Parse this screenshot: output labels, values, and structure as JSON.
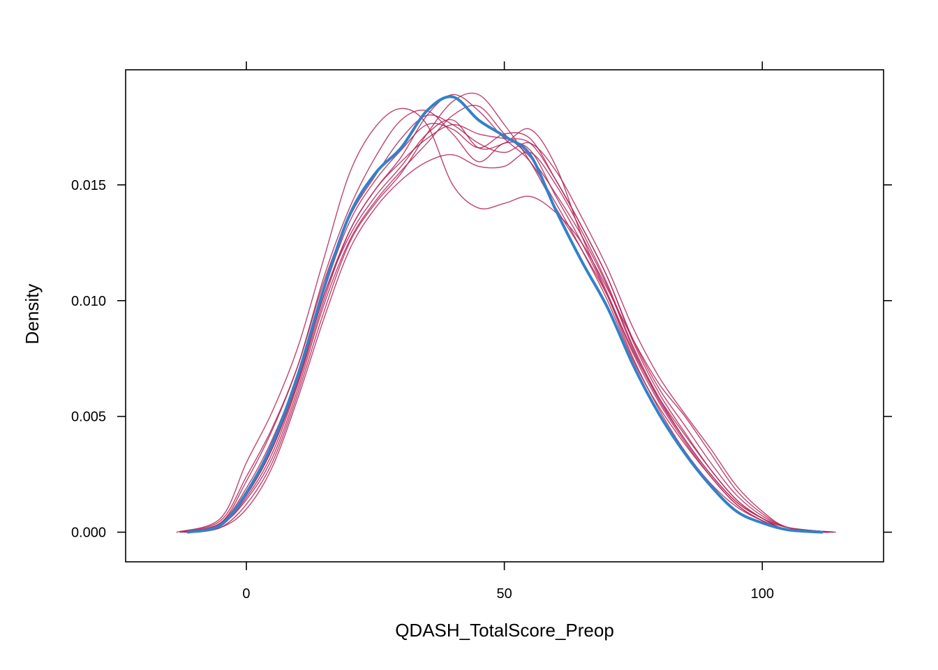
{
  "chart_data": {
    "type": "line",
    "title": "",
    "xlabel": "QDASH_TotalScore_Preop",
    "ylabel": "Density",
    "xlim": [
      -23.4,
      123.5
    ],
    "ylim": [
      -0.00128,
      0.01997
    ],
    "x_ticks": [
      0,
      50,
      100
    ],
    "x_tick_labels": [
      "0",
      "50",
      "100"
    ],
    "y_ticks": [
      0.0,
      0.005,
      0.01,
      0.015
    ],
    "y_tick_labels": [
      "0.000",
      "0.005",
      "0.010",
      "0.015"
    ],
    "grid": false,
    "legend": "none",
    "colors": {
      "observed": "#3182c8",
      "imputed": "#b22255"
    },
    "series": [
      {
        "role": "observed",
        "x": [
          -11.3,
          -5,
          0,
          5,
          10,
          15,
          20,
          25,
          30,
          35,
          40,
          45,
          50,
          55,
          60,
          65,
          70,
          75,
          80,
          85,
          90,
          95,
          100,
          105,
          111.6
        ],
        "y": [
          0,
          0.0003,
          0.0017,
          0.0038,
          0.0068,
          0.0105,
          0.0137,
          0.0155,
          0.0166,
          0.0182,
          0.0188,
          0.0178,
          0.0171,
          0.0163,
          0.0139,
          0.0117,
          0.0097,
          0.0072,
          0.0051,
          0.0034,
          0.002,
          0.0009,
          0.0004,
          0.0001,
          0
        ]
      },
      {
        "role": "imputed",
        "x": [
          -12.7,
          -5,
          0,
          5,
          10,
          15,
          20,
          25,
          30,
          35,
          40,
          45,
          50,
          55,
          60,
          65,
          70,
          75,
          80,
          85,
          90,
          95,
          100,
          105,
          112.6
        ],
        "y": [
          0,
          0.0004,
          0.0022,
          0.0044,
          0.0072,
          0.011,
          0.014,
          0.0162,
          0.0178,
          0.0182,
          0.0172,
          0.016,
          0.0168,
          0.0165,
          0.0145,
          0.0125,
          0.0102,
          0.0075,
          0.0053,
          0.0035,
          0.0021,
          0.0011,
          0.0005,
          0.0001,
          0
        ]
      },
      {
        "role": "imputed",
        "x": [
          -11.9,
          -5,
          0,
          5,
          10,
          15,
          20,
          25,
          30,
          35,
          40,
          45,
          50,
          55,
          60,
          65,
          70,
          75,
          80,
          85,
          90,
          95,
          100,
          105,
          113.5
        ],
        "y": [
          0,
          0.0002,
          0.001,
          0.0028,
          0.0058,
          0.0092,
          0.0122,
          0.014,
          0.0152,
          0.016,
          0.0163,
          0.0158,
          0.0158,
          0.0164,
          0.015,
          0.013,
          0.0107,
          0.008,
          0.0058,
          0.004,
          0.0025,
          0.0013,
          0.0006,
          0.0002,
          0
        ]
      },
      {
        "role": "imputed",
        "x": [
          -13.5,
          -5,
          0,
          5,
          10,
          15,
          20,
          25,
          30,
          35,
          40,
          45,
          50,
          55,
          60,
          65,
          70,
          75,
          80,
          85,
          90,
          95,
          100,
          105,
          114.2
        ],
        "y": [
          0,
          0.0006,
          0.003,
          0.0052,
          0.008,
          0.0118,
          0.0155,
          0.0175,
          0.0183,
          0.0176,
          0.015,
          0.014,
          0.0142,
          0.0145,
          0.0138,
          0.0125,
          0.0105,
          0.0083,
          0.0064,
          0.005,
          0.0034,
          0.0018,
          0.0008,
          0.0002,
          0
        ]
      },
      {
        "role": "imputed",
        "x": [
          -11.6,
          -5,
          0,
          5,
          10,
          15,
          20,
          25,
          30,
          35,
          40,
          45,
          50,
          55,
          60,
          65,
          70,
          75,
          80,
          85,
          90,
          95,
          100,
          105,
          112.9
        ],
        "y": [
          0,
          0.0003,
          0.0015,
          0.0034,
          0.0064,
          0.01,
          0.013,
          0.0148,
          0.0162,
          0.018,
          0.0189,
          0.0182,
          0.017,
          0.016,
          0.0142,
          0.0122,
          0.01,
          0.0074,
          0.0054,
          0.0038,
          0.0024,
          0.0012,
          0.0005,
          0.0001,
          0
        ]
      },
      {
        "role": "imputed",
        "x": [
          -12.1,
          -5,
          0,
          5,
          10,
          15,
          20,
          25,
          30,
          35,
          40,
          45,
          50,
          55,
          60,
          65,
          70,
          75,
          80,
          85,
          90,
          95,
          100,
          105,
          113.2
        ],
        "y": [
          0,
          0.0003,
          0.0016,
          0.0036,
          0.0065,
          0.0102,
          0.0128,
          0.0145,
          0.0158,
          0.0172,
          0.0178,
          0.0166,
          0.0168,
          0.0174,
          0.0158,
          0.0128,
          0.0103,
          0.0078,
          0.0058,
          0.0042,
          0.0027,
          0.0014,
          0.0006,
          0.0001,
          0
        ]
      },
      {
        "role": "imputed",
        "x": [
          -10.8,
          -5,
          0,
          5,
          10,
          15,
          20,
          25,
          30,
          35,
          40,
          45,
          50,
          55,
          60,
          65,
          70,
          75,
          80,
          85,
          90,
          95,
          100,
          105,
          112.1
        ],
        "y": [
          0,
          0.0002,
          0.0012,
          0.003,
          0.006,
          0.0095,
          0.0125,
          0.0142,
          0.0155,
          0.0172,
          0.0186,
          0.0189,
          0.0176,
          0.016,
          0.014,
          0.0122,
          0.0102,
          0.0077,
          0.0056,
          0.0039,
          0.0024,
          0.0012,
          0.0005,
          0.0001,
          0
        ]
      },
      {
        "role": "imputed",
        "x": [
          -12.4,
          -5,
          0,
          5,
          10,
          15,
          20,
          25,
          30,
          35,
          40,
          45,
          50,
          55,
          60,
          65,
          70,
          75,
          80,
          85,
          90,
          95,
          100,
          105,
          113.8
        ],
        "y": [
          0,
          0.0004,
          0.0019,
          0.004,
          0.0068,
          0.0104,
          0.0134,
          0.0152,
          0.0165,
          0.0176,
          0.0174,
          0.0166,
          0.0172,
          0.017,
          0.0152,
          0.0132,
          0.011,
          0.0083,
          0.0062,
          0.0046,
          0.003,
          0.0016,
          0.0007,
          0.0002,
          0
        ]
      },
      {
        "role": "imputed",
        "x": [
          -11.0,
          -5,
          0,
          5,
          10,
          15,
          20,
          25,
          30,
          35,
          40,
          45,
          50,
          55,
          60,
          65,
          70,
          75,
          80,
          85,
          90,
          95,
          100,
          105,
          112.4
        ],
        "y": [
          0,
          0.0003,
          0.0014,
          0.0032,
          0.0062,
          0.0098,
          0.0126,
          0.0143,
          0.0156,
          0.0168,
          0.018,
          0.0184,
          0.0172,
          0.0162,
          0.0146,
          0.0128,
          0.0106,
          0.0079,
          0.0057,
          0.004,
          0.0025,
          0.0013,
          0.0006,
          0.0001,
          0
        ]
      },
      {
        "role": "imputed",
        "x": [
          -12.9,
          -5,
          0,
          5,
          10,
          15,
          20,
          25,
          30,
          35,
          40,
          45,
          50,
          55,
          60,
          65,
          70,
          75,
          80,
          85,
          90,
          95,
          100,
          105,
          113.6
        ],
        "y": [
          0,
          0.0005,
          0.0024,
          0.0045,
          0.0072,
          0.0108,
          0.0136,
          0.0154,
          0.017,
          0.018,
          0.0176,
          0.0168,
          0.0164,
          0.0168,
          0.0156,
          0.0136,
          0.0114,
          0.0088,
          0.0067,
          0.0051,
          0.0036,
          0.002,
          0.0009,
          0.0002,
          0
        ]
      },
      {
        "role": "imputed",
        "x": [
          -11.5,
          -5,
          0,
          5,
          10,
          15,
          20,
          25,
          30,
          35,
          40,
          45,
          50,
          55,
          60,
          65,
          70,
          75,
          80,
          85,
          90,
          95,
          100,
          105,
          112.7
        ],
        "y": [
          0,
          0.0003,
          0.0016,
          0.0036,
          0.0066,
          0.0102,
          0.013,
          0.0148,
          0.016,
          0.017,
          0.0176,
          0.0172,
          0.017,
          0.0168,
          0.0152,
          0.0132,
          0.011,
          0.0082,
          0.006,
          0.0043,
          0.0027,
          0.0014,
          0.0006,
          0.0001,
          0
        ]
      }
    ]
  }
}
